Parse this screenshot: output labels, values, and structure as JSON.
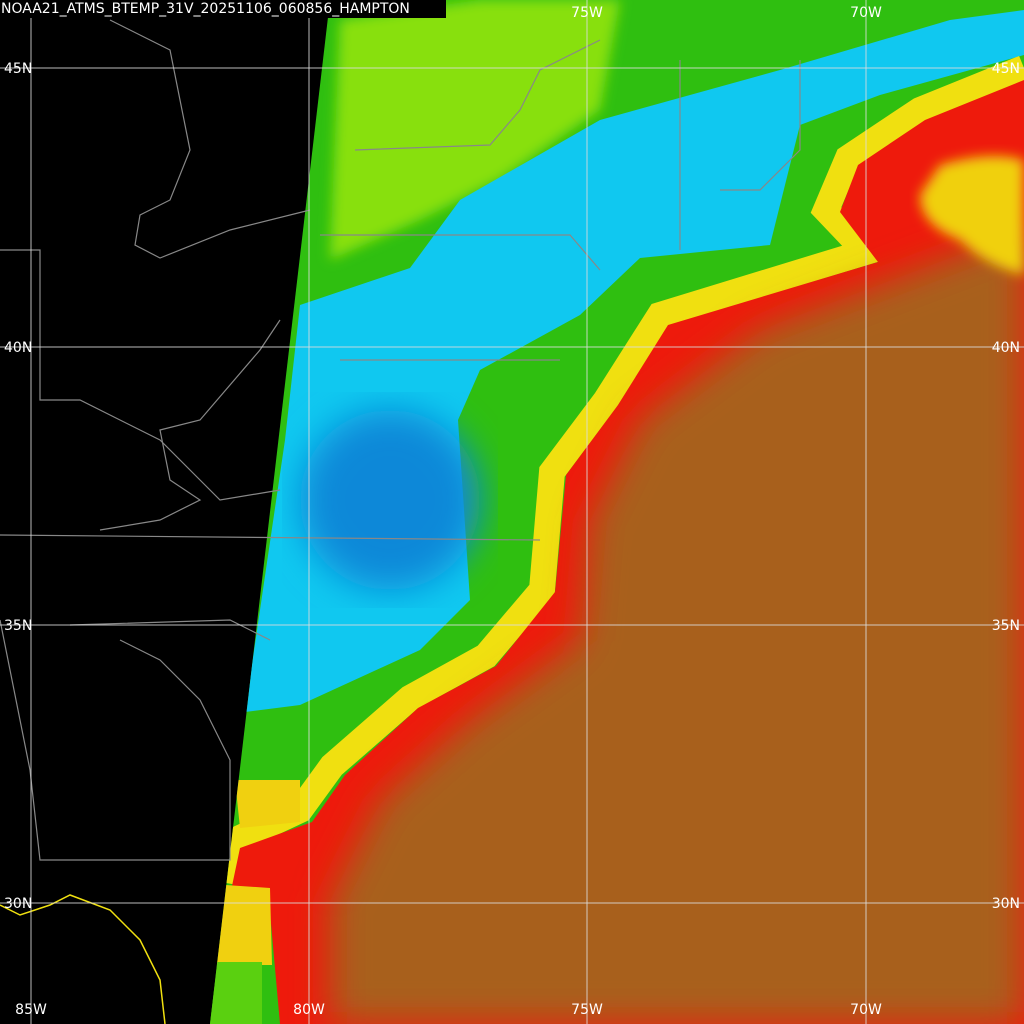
{
  "title": "NOAA21_ATMS_BTEMP_31V_20251106_060856_HAMPTON",
  "top_labels": [
    "75W",
    "70W"
  ],
  "bottom_labels": [
    "85W",
    "80W",
    "75W",
    "70W"
  ],
  "left_labels": [
    "45N",
    "40N",
    "35N",
    "30N"
  ],
  "right_labels": [
    "45N",
    "40N",
    "35N",
    "30N"
  ]
}
